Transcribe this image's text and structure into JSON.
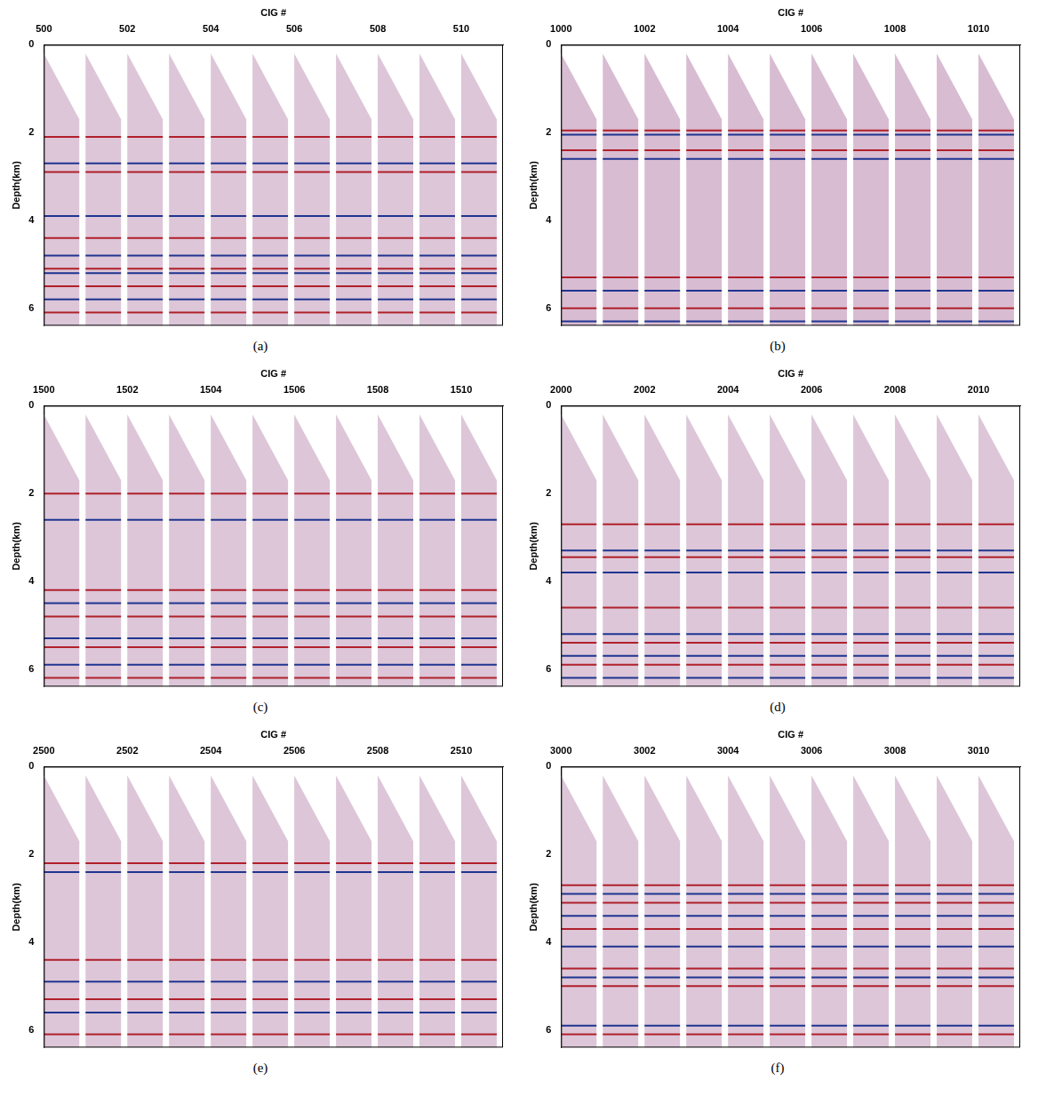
{
  "chart_data": [
    {
      "type": "line",
      "caption": "(a)",
      "x_label": "CIG #",
      "y_label": "Depth(km)",
      "x": [
        500,
        501,
        502,
        503,
        504,
        505,
        506,
        507,
        508,
        509,
        510
      ],
      "gather_width": 0.85,
      "mute_top": [
        0.2,
        1.7
      ],
      "color": "#dcc6d8",
      "reflectors": [
        2.1,
        2.7,
        2.9,
        3.9,
        4.4,
        4.8,
        5.1,
        5.2,
        5.5,
        5.8,
        6.1
      ],
      "xlim": [
        500,
        511
      ],
      "xticks": [
        500,
        502,
        504,
        506,
        508,
        510
      ],
      "ylim": [
        0,
        6.4
      ],
      "yticks": [
        0,
        2,
        4,
        6
      ],
      "grid": false
    },
    {
      "type": "line",
      "caption": "(b)",
      "x_label": "CIG #",
      "y_label": "Depth(km)",
      "x": [
        1000,
        1001,
        1002,
        1003,
        1004,
        1005,
        1006,
        1007,
        1008,
        1009,
        1010
      ],
      "gather_width": 0.85,
      "mute_top": [
        0.2,
        1.7
      ],
      "color": "#d8bcd2",
      "reflectors": [
        1.95,
        2.05,
        2.4,
        2.6,
        5.3,
        5.6,
        6.0,
        6.3
      ],
      "xlim": [
        1000,
        1011
      ],
      "xticks": [
        1000,
        1002,
        1004,
        1006,
        1008,
        1010
      ],
      "ylim": [
        0,
        6.4
      ],
      "yticks": [
        0,
        2,
        4,
        6
      ],
      "grid": false
    },
    {
      "type": "line",
      "caption": "(c)",
      "x_label": "CIG #",
      "y_label": "Depth(km)",
      "x": [
        1500,
        1501,
        1502,
        1503,
        1504,
        1505,
        1506,
        1507,
        1508,
        1509,
        1510
      ],
      "gather_width": 0.85,
      "mute_top": [
        0.2,
        1.7
      ],
      "color": "#dcc6d8",
      "reflectors": [
        2.0,
        2.6,
        4.2,
        4.5,
        4.8,
        5.3,
        5.5,
        5.9,
        6.2
      ],
      "xlim": [
        1500,
        1511
      ],
      "xticks": [
        1500,
        1502,
        1504,
        1506,
        1508,
        1510
      ],
      "ylim": [
        0,
        6.4
      ],
      "yticks": [
        0,
        2,
        4,
        6
      ],
      "grid": false
    },
    {
      "type": "line",
      "caption": "(d)",
      "x_label": "CIG #",
      "y_label": "Depth(km)",
      "x": [
        2000,
        2001,
        2002,
        2003,
        2004,
        2005,
        2006,
        2007,
        2008,
        2009,
        2010
      ],
      "gather_width": 0.85,
      "mute_top": [
        0.2,
        1.7
      ],
      "color": "#dcc6d8",
      "reflectors": [
        2.7,
        3.3,
        3.45,
        3.8,
        4.6,
        5.2,
        5.4,
        5.7,
        5.9,
        6.2
      ],
      "xlim": [
        2000,
        2011
      ],
      "xticks": [
        2000,
        2002,
        2004,
        2006,
        2008,
        2010
      ],
      "ylim": [
        0,
        6.4
      ],
      "yticks": [
        0,
        2,
        4,
        6
      ],
      "grid": false
    },
    {
      "type": "line",
      "caption": "(e)",
      "x_label": "CIG #",
      "y_label": "Depth(km)",
      "x": [
        2500,
        2501,
        2502,
        2503,
        2504,
        2505,
        2506,
        2507,
        2508,
        2509,
        2510
      ],
      "gather_width": 0.85,
      "mute_top": [
        0.2,
        1.7
      ],
      "color": "#dcc6d8",
      "reflectors": [
        2.2,
        2.4,
        4.4,
        4.9,
        5.3,
        5.6,
        6.1
      ],
      "xlim": [
        2500,
        2511
      ],
      "xticks": [
        2500,
        2502,
        2504,
        2506,
        2508,
        2510
      ],
      "ylim": [
        0,
        6.4
      ],
      "yticks": [
        0,
        2,
        4,
        6
      ],
      "grid": false
    },
    {
      "type": "line",
      "caption": "(f)",
      "x_label": "CIG #",
      "y_label": "Depth(km)",
      "x": [
        3000,
        3001,
        3002,
        3003,
        3004,
        3005,
        3006,
        3007,
        3008,
        3009,
        3010
      ],
      "gather_width": 0.85,
      "mute_top": [
        0.2,
        1.7
      ],
      "color": "#dcc6d8",
      "reflectors": [
        2.7,
        2.9,
        3.1,
        3.4,
        3.7,
        4.1,
        4.6,
        4.8,
        5.0,
        5.9,
        6.1
      ],
      "xlim": [
        3000,
        3011
      ],
      "xticks": [
        3000,
        3002,
        3004,
        3006,
        3008,
        3010
      ],
      "ylim": [
        0,
        6.4
      ],
      "yticks": [
        0,
        2,
        4,
        6
      ],
      "grid": false
    }
  ]
}
